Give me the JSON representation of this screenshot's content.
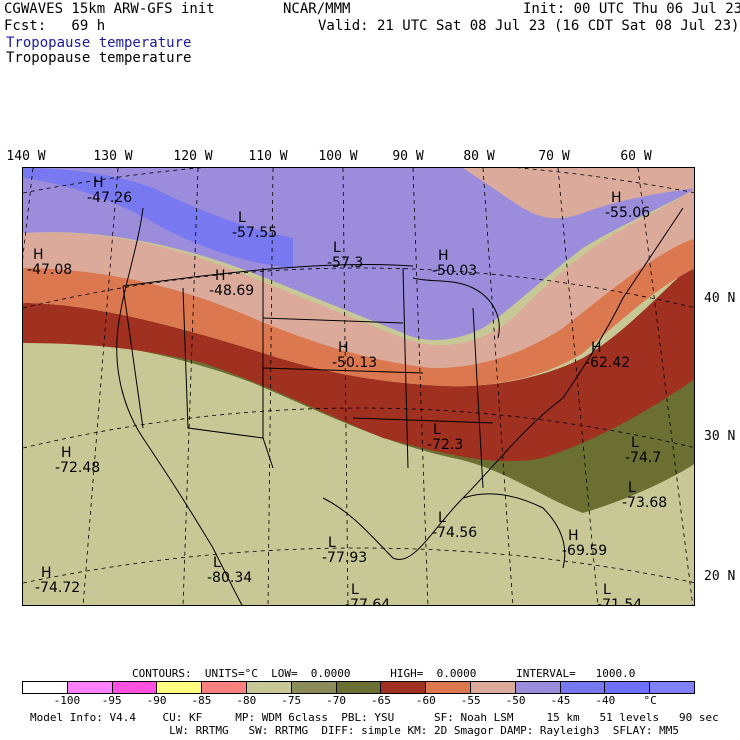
{
  "header": {
    "model": "CGWAVES 15km ARW-GFS init",
    "center": "NCAR/MMM",
    "init": "Init: 00 UTC Thu 06 Jul 23",
    "fcst": "Fcst:   69 h",
    "valid": "Valid: 21 UTC Sat 08 Jul 23 (16 CDT Sat 08 Jul 23)",
    "field_title_blue": "Tropopause temperature",
    "field_title_black": "Tropopause temperature"
  },
  "lon_labels": [
    "140 W",
    "130 W",
    "120 W",
    "110 W",
    "100 W",
    "90 W",
    "80 W",
    "70 W",
    "60 W"
  ],
  "lat_labels": [
    "40 N",
    "30 N",
    "20 N"
  ],
  "map_labels": [
    {
      "kind": "H",
      "value": "-47.26"
    },
    {
      "kind": "L",
      "value": "-57.55"
    },
    {
      "kind": "L",
      "value": "-57.3"
    },
    {
      "kind": "H",
      "value": "-50.03"
    },
    {
      "kind": "H",
      "value": "-55.06"
    },
    {
      "kind": "H",
      "value": "-47.08"
    },
    {
      "kind": "H",
      "value": "-48.69"
    },
    {
      "kind": "H",
      "value": "-50.13"
    },
    {
      "kind": "H",
      "value": "-62.42"
    },
    {
      "kind": "L",
      "value": "-72.3"
    },
    {
      "kind": "L",
      "value": "-74.7"
    },
    {
      "kind": "H",
      "value": "-72.48"
    },
    {
      "kind": "L",
      "value": "-73.68"
    },
    {
      "kind": "L",
      "value": "-74.56"
    },
    {
      "kind": "L",
      "value": "-77.93"
    },
    {
      "kind": "H",
      "value": "-69.59"
    },
    {
      "kind": "L",
      "value": "-80.34"
    },
    {
      "kind": "H",
      "value": "-74.72"
    },
    {
      "kind": "L",
      "value": "-77.64"
    },
    {
      "kind": "L",
      "value": "-71.54"
    }
  ],
  "contour_info": "CONTOURS:  UNITS=°C  LOW=  0.0000      HIGH=  0.0000      INTERVAL=   1000.0",
  "colorbar": {
    "colors": [
      "#ffffff",
      "#ff80ff",
      "#ff50e0",
      "#ffff80",
      "#ff8080",
      "#c8c896",
      "#8c8c5a",
      "#6b7032",
      "#a03020",
      "#dc7850",
      "#dcaa9b",
      "#9b8cdc",
      "#7878f0",
      "#7070ff",
      "#8080ff"
    ],
    "ticks": [
      "-100",
      "-95",
      "-90",
      "-85",
      "-80",
      "-75",
      "-70",
      "-65",
      "-60",
      "-55",
      "-50",
      "-45",
      "-40",
      "°C"
    ]
  },
  "footer": {
    "line1": "Model Info: V4.4    CU: KF     MP: WDM 6class  PBL: YSU      SF: Noah LSM     15 km   51 levels   90 sec",
    "line2": "                     LW: RRTMG   SW: RRTMG  DIFF: simple KM: 2D Smagor DAMP: Rayleigh3  SFLAY: MM5"
  }
}
